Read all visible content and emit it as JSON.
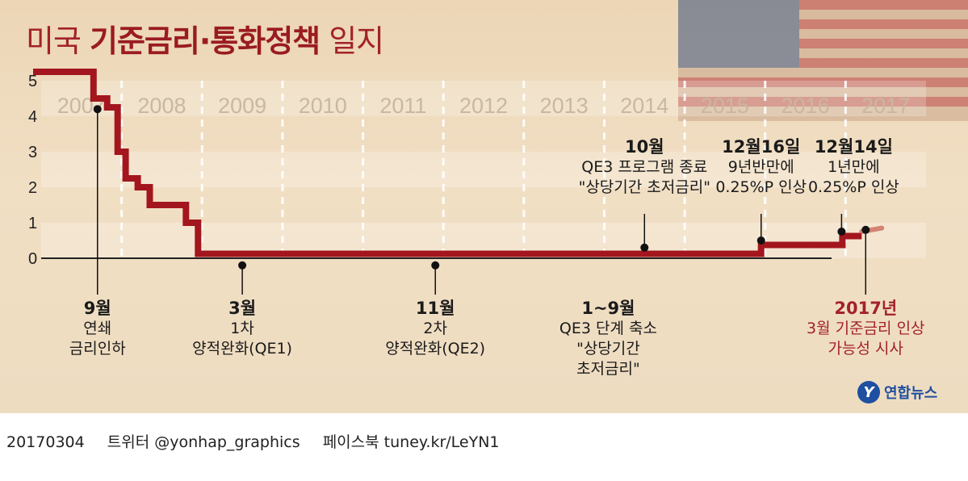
{
  "title": {
    "part1": "미국 ",
    "part2": "기준금리·통화정책",
    "part3": " 일지"
  },
  "chart_data": {
    "type": "line",
    "step": true,
    "ylim": [
      0,
      5
    ],
    "yticks": [
      "0",
      "1",
      "2",
      "3",
      "4",
      "5"
    ],
    "xlim": [
      2007,
      2018
    ],
    "years": [
      "2007",
      "2008",
      "2009",
      "2010",
      "2011",
      "2012",
      "2013",
      "2014",
      "2015",
      "2016",
      "2017"
    ],
    "series": [
      {
        "x": [
          2006.9,
          2007.65,
          2007.65,
          2007.82,
          2007.82,
          2007.95,
          2007.95,
          2008.05,
          2008.05,
          2008.2,
          2008.2,
          2008.27,
          2008.27,
          2008.35,
          2008.35,
          2008.8,
          2008.8,
          2008.95,
          2008.95,
          2009.05,
          2009.05,
          2015.95,
          2015.95,
          2016.96,
          2016.96,
          2017.2
        ],
        "y": [
          5.25,
          5.25,
          4.5,
          4.5,
          4.25,
          4.25,
          3.0,
          3.0,
          2.25,
          2.25,
          2.0,
          2.0,
          2.0,
          2.0,
          1.5,
          1.5,
          1.0,
          1.0,
          0.125,
          0.125,
          0.125,
          0.125,
          0.375,
          0.375,
          0.625,
          0.625
        ],
        "projection": {
          "x": [
            2017.2,
            2017.45
          ],
          "y": [
            0.75,
            0.85
          ]
        }
      }
    ],
    "events": [
      {
        "x": 2007.7,
        "y": 4.2,
        "dir": "down",
        "title": "9월",
        "lines": [
          "연쇄",
          "금리인하"
        ]
      },
      {
        "x": 2009.5,
        "y": -0.2,
        "dir": "down",
        "title": "3월",
        "lines": [
          "1차",
          "양적완화(QE1)"
        ]
      },
      {
        "x": 2011.9,
        "y": -0.2,
        "dir": "down",
        "title": "11월",
        "lines": [
          "2차",
          "양적완화(QE2)"
        ]
      },
      {
        "x": 2014.5,
        "y": 0.3,
        "dir": "up",
        "title": "10월",
        "lines": [
          "QE3 프로그램 종료",
          "\"상당기간 초저금리\""
        ]
      },
      {
        "x": 2015.95,
        "y": 0.5,
        "dir": "up",
        "title": "12월16일",
        "lines": [
          "9년반만에",
          "0.25%P 인상"
        ]
      },
      {
        "x": 2016.95,
        "y": 0.75,
        "dir": "up",
        "title": "12월14일",
        "lines": [
          "1년만에",
          "0.25%P 인상"
        ]
      },
      {
        "x": 2017.25,
        "y": 0.8,
        "dir": "down",
        "title": "2017년",
        "lines": [
          "3월 기준금리 인상",
          "가능성 시사"
        ],
        "highlight": true
      }
    ],
    "span_annotation": {
      "title": "1~9월",
      "lines": [
        "QE3 단계 축소",
        "\"상당기간",
        "초저금리\""
      ]
    },
    "colors": {
      "line": "#a3161d",
      "projection": "#c85a4a",
      "dot": "#111111",
      "highlight_text": "#a3222a"
    }
  },
  "logo": {
    "mark": "Y",
    "name": "연합뉴스"
  },
  "footer": {
    "date": "20170304",
    "twitter": "트위터 @yonhap_graphics",
    "facebook": "페이스북 tuney.kr/LeYN1"
  }
}
